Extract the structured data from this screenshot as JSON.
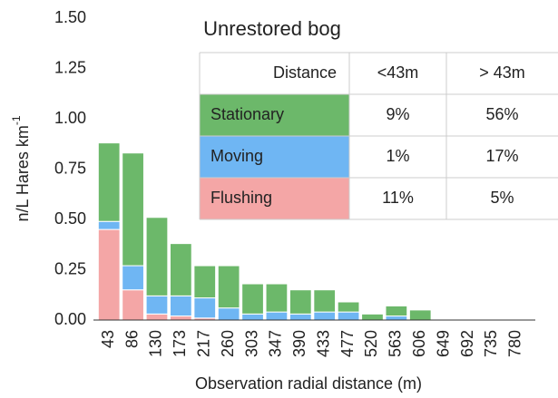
{
  "chart_data": {
    "type": "bar",
    "stacked": true,
    "title": "Unrestored bog",
    "x_label": "Observation radial distance (m)",
    "y_label": "n/L Hares km",
    "y_label_sup": "-1",
    "categories": [
      "43",
      "86",
      "130",
      "173",
      "217",
      "260",
      "303",
      "347",
      "390",
      "433",
      "477",
      "520",
      "563",
      "606",
      "649",
      "692",
      "735",
      "780"
    ],
    "series": [
      {
        "name": "Flushing",
        "color": "#f4a6a6",
        "values": [
          0.45,
          0.15,
          0.03,
          0.02,
          0.01,
          0,
          0,
          0,
          0,
          0,
          0,
          0,
          0,
          0,
          0,
          0,
          0,
          0
        ]
      },
      {
        "name": "Moving",
        "color": "#6fb6f3",
        "values": [
          0.04,
          0.12,
          0.09,
          0.1,
          0.1,
          0.06,
          0.03,
          0.04,
          0.03,
          0.04,
          0.04,
          0,
          0.02,
          0,
          0,
          0,
          0,
          0
        ]
      },
      {
        "name": "Stationary",
        "color": "#6cb86a",
        "values": [
          0.39,
          0.56,
          0.39,
          0.26,
          0.16,
          0.21,
          0.15,
          0.14,
          0.12,
          0.11,
          0.05,
          0.03,
          0.05,
          0.05,
          0,
          0,
          0,
          0
        ]
      }
    ],
    "ylim": [
      0,
      1.5
    ],
    "yticks": [
      {
        "value": 0,
        "label": "0.00"
      },
      {
        "value": 0.25,
        "label": "0.25"
      },
      {
        "value": 0.5,
        "label": "0.50"
      },
      {
        "value": 0.75,
        "label": "0.75"
      },
      {
        "value": 1,
        "label": "1.00"
      },
      {
        "value": 1.25,
        "label": "1.25"
      },
      {
        "value": 1.5,
        "label": "1.50"
      }
    ],
    "grid": false,
    "table": {
      "header": [
        "Distance",
        "<43m",
        "> 43m"
      ],
      "rows": [
        [
          "9%",
          "56%"
        ],
        [
          "1%",
          "17%"
        ],
        [
          "11%",
          "5%"
        ]
      ]
    }
  }
}
